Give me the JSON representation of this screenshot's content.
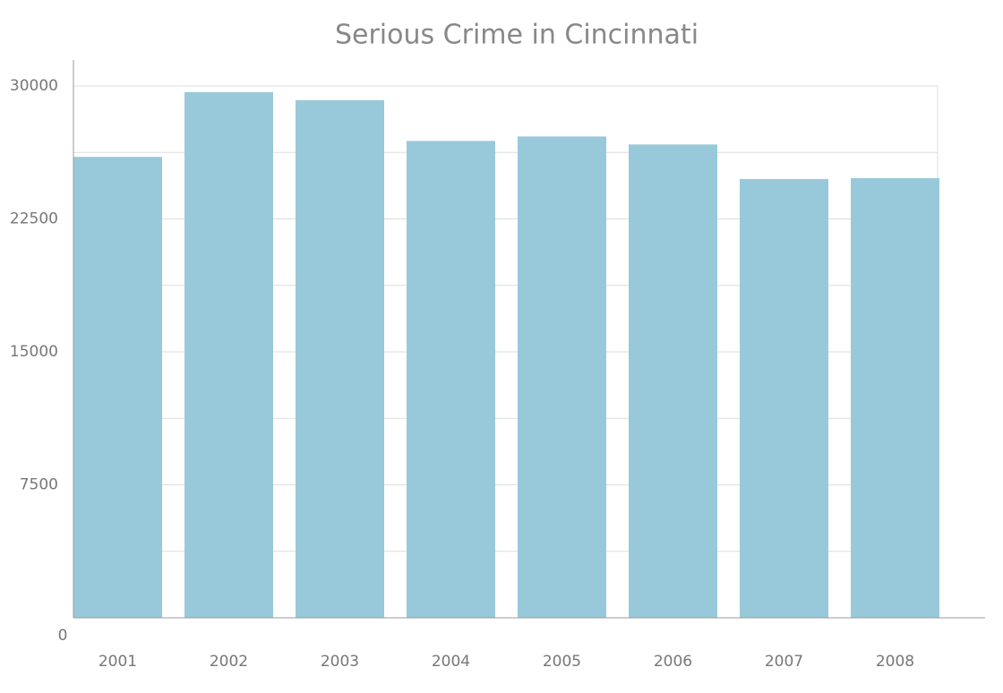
{
  "chart_data": {
    "type": "bar",
    "title": "Serious Crime in Cincinnati",
    "categories": [
      "2001",
      "2002",
      "2003",
      "2004",
      "2005",
      "2006",
      "2007",
      "2008"
    ],
    "values": [
      26000,
      29650,
      29200,
      26900,
      27150,
      26700,
      24750,
      24800
    ],
    "color": "#98c9da",
    "ylim": [
      0,
      30000
    ],
    "yticks": [
      0,
      7500,
      15000,
      22500,
      30000
    ],
    "minor_yticks": [
      3750,
      11250,
      18750,
      26250
    ],
    "grid": true
  }
}
